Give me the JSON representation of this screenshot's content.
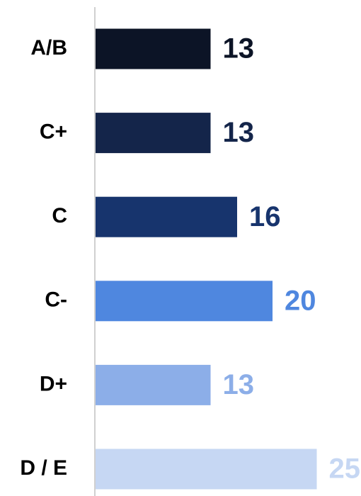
{
  "chart_data": {
    "type": "barh",
    "categories": [
      "A/B",
      "C+",
      "C",
      "C-",
      "D+",
      "D / E"
    ],
    "values": [
      13,
      13,
      16,
      20,
      13,
      25
    ],
    "colors": [
      "#0c1426",
      "#14254a",
      "#17346d",
      "#4f87df",
      "#8caee8",
      "#c6d7f3"
    ]
  }
}
